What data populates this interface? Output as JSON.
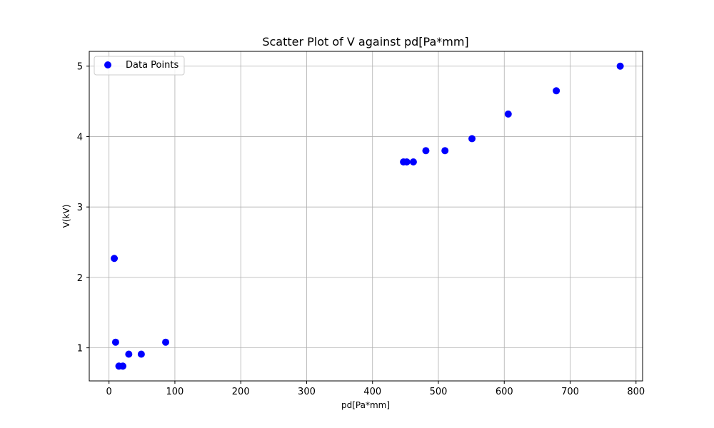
{
  "chart_data": {
    "type": "scatter",
    "title": "Scatter Plot of V against pd[Pa*mm]",
    "xlabel": "pd[Pa*mm]",
    "ylabel": "V(kV)",
    "xlim": [
      -30,
      810
    ],
    "ylim": [
      0.53,
      5.21
    ],
    "xticks": [
      0,
      100,
      200,
      300,
      400,
      500,
      600,
      700,
      800
    ],
    "yticks": [
      1,
      2,
      3,
      4,
      5
    ],
    "xtick_labels": [
      "0",
      "100",
      "200",
      "300",
      "400",
      "500",
      "600",
      "700",
      "800"
    ],
    "ytick_labels": [
      "1",
      "2",
      "3",
      "4",
      "5"
    ],
    "grid": true,
    "legend": {
      "position": "top-left",
      "entries": [
        "Data Points"
      ]
    },
    "series": [
      {
        "name": "Data Points",
        "color": "#0000ff",
        "points": [
          {
            "x": 8,
            "y": 2.27
          },
          {
            "x": 10,
            "y": 1.08
          },
          {
            "x": 15,
            "y": 0.74
          },
          {
            "x": 21,
            "y": 0.74
          },
          {
            "x": 30,
            "y": 0.91
          },
          {
            "x": 49,
            "y": 0.91
          },
          {
            "x": 86,
            "y": 1.08
          },
          {
            "x": 447,
            "y": 3.64
          },
          {
            "x": 452,
            "y": 3.64
          },
          {
            "x": 462,
            "y": 3.64
          },
          {
            "x": 481,
            "y": 3.8
          },
          {
            "x": 510,
            "y": 3.8
          },
          {
            "x": 551,
            "y": 3.97
          },
          {
            "x": 606,
            "y": 4.32
          },
          {
            "x": 679,
            "y": 4.65
          },
          {
            "x": 776,
            "y": 5.0
          }
        ]
      }
    ]
  }
}
